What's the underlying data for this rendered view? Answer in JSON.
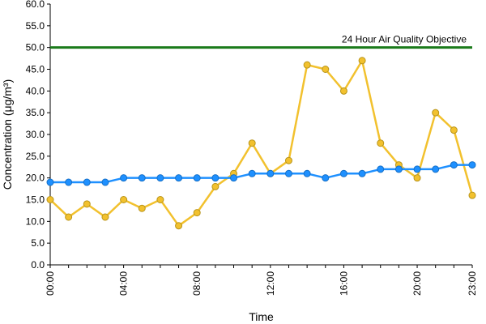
{
  "chart_data": {
    "type": "line",
    "title": "",
    "xlabel": "Time",
    "ylabel": "Concentration (μg/m³)",
    "ylim": [
      0,
      60
    ],
    "y_ticks": [
      "0.0",
      "5.0",
      "10.0",
      "15.0",
      "20.0",
      "25.0",
      "30.0",
      "35.0",
      "40.0",
      "45.0",
      "50.0",
      "55.0",
      "60.0"
    ],
    "x_ticks": [
      "00:00",
      "04:00",
      "08:00",
      "12:00",
      "16:00",
      "20:00",
      "23:00"
    ],
    "x": [
      0,
      1,
      2,
      3,
      4,
      5,
      6,
      7,
      8,
      9,
      10,
      11,
      12,
      13,
      14,
      15,
      16,
      17,
      18,
      19,
      20,
      21,
      22,
      23
    ],
    "series": [
      {
        "color": "#f2c12e",
        "values": [
          15,
          11,
          14,
          11,
          15,
          13,
          15,
          9,
          12,
          18,
          21,
          28,
          21,
          24,
          46,
          45,
          40,
          47,
          28,
          23,
          20,
          35,
          31,
          16
        ]
      },
      {
        "color": "#1e90ff",
        "values": [
          19,
          19,
          19,
          19,
          20,
          20,
          20,
          20,
          20,
          20,
          20,
          21,
          21,
          21,
          21,
          20,
          21,
          21,
          22,
          22,
          22,
          22,
          23,
          23
        ]
      }
    ],
    "reference_line": {
      "value": 50,
      "label": "24 Hour Air Quality Objective",
      "color": "#1a7a1a"
    },
    "grid": false,
    "legend": "none"
  }
}
